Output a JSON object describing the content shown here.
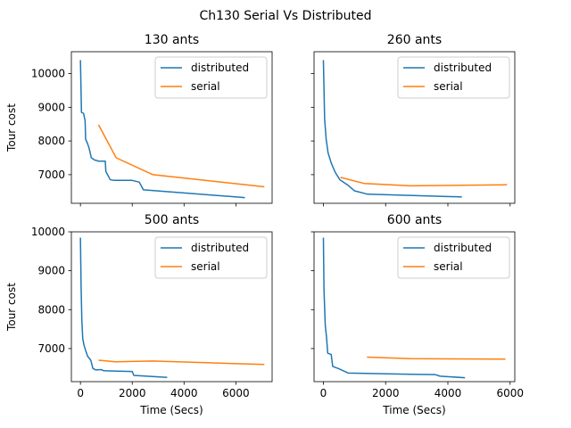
{
  "figure": {
    "title": "Ch130 Serial Vs Distributed"
  },
  "colors": {
    "distributed": "#1f77b4",
    "serial": "#ff7f0e"
  },
  "chart_data": [
    {
      "type": "line",
      "title": "130 ants",
      "xlabel": "",
      "ylabel": "Tour cost",
      "xlim": [
        -350,
        7400
      ],
      "ylim": [
        6150,
        10650
      ],
      "xticks": [
        0,
        2000,
        4000,
        6000
      ],
      "yticks": [
        7000,
        8000,
        9000,
        10000
      ],
      "show_xticklabels": false,
      "show_yticklabels": true,
      "legend": "top-right",
      "series": [
        {
          "name": "distributed",
          "points": [
            [
              0,
              10400
            ],
            [
              40,
              8850
            ],
            [
              120,
              8820
            ],
            [
              180,
              8600
            ],
            [
              200,
              8050
            ],
            [
              260,
              7950
            ],
            [
              330,
              7800
            ],
            [
              420,
              7500
            ],
            [
              560,
              7430
            ],
            [
              640,
              7420
            ],
            [
              700,
              7400
            ],
            [
              960,
              7400
            ],
            [
              980,
              7100
            ],
            [
              1150,
              6850
            ],
            [
              1300,
              6830
            ],
            [
              2000,
              6830
            ],
            [
              2150,
              6800
            ],
            [
              2270,
              6780
            ],
            [
              2430,
              6550
            ],
            [
              6350,
              6320
            ]
          ]
        },
        {
          "name": "serial",
          "points": [
            [
              700,
              8480
            ],
            [
              1380,
              7500
            ],
            [
              2800,
              7000
            ],
            [
              7100,
              6640
            ]
          ]
        }
      ]
    },
    {
      "type": "line",
      "title": "260 ants",
      "xlabel": "",
      "ylabel": "",
      "xlim": [
        -300,
        6150
      ],
      "ylim": [
        6150,
        10650
      ],
      "xticks": [
        0,
        2000,
        4000,
        6000
      ],
      "yticks": [
        7000,
        8000,
        9000,
        10000
      ],
      "show_xticklabels": false,
      "show_yticklabels": false,
      "legend": "top-right",
      "series": [
        {
          "name": "distributed",
          "points": [
            [
              0,
              10400
            ],
            [
              40,
              8650
            ],
            [
              90,
              8050
            ],
            [
              150,
              7650
            ],
            [
              250,
              7350
            ],
            [
              380,
              7070
            ],
            [
              530,
              6850
            ],
            [
              800,
              6680
            ],
            [
              1000,
              6520
            ],
            [
              1420,
              6420
            ],
            [
              4450,
              6340
            ]
          ]
        },
        {
          "name": "serial",
          "points": [
            [
              550,
              6920
            ],
            [
              1300,
              6740
            ],
            [
              2800,
              6670
            ],
            [
              5900,
              6700
            ]
          ]
        }
      ]
    },
    {
      "type": "line",
      "title": "500 ants",
      "xlabel": "Time (Secs)",
      "ylabel": "Tour cost",
      "xlim": [
        -350,
        7400
      ],
      "ylim": [
        6150,
        10000
      ],
      "xticks": [
        0,
        2000,
        4000,
        6000
      ],
      "yticks": [
        7000,
        8000,
        9000,
        10000
      ],
      "show_xticklabels": true,
      "show_yticklabels": true,
      "legend": "top-right",
      "series": [
        {
          "name": "distributed",
          "points": [
            [
              0,
              9850
            ],
            [
              25,
              8600
            ],
            [
              55,
              7700
            ],
            [
              90,
              7250
            ],
            [
              140,
              7080
            ],
            [
              200,
              6950
            ],
            [
              280,
              6800
            ],
            [
              400,
              6700
            ],
            [
              480,
              6490
            ],
            [
              600,
              6450
            ],
            [
              800,
              6460
            ],
            [
              900,
              6430
            ],
            [
              2000,
              6410
            ],
            [
              2060,
              6310
            ],
            [
              3350,
              6260
            ]
          ]
        },
        {
          "name": "serial",
          "points": [
            [
              700,
              6700
            ],
            [
              1350,
              6660
            ],
            [
              2800,
              6680
            ],
            [
              7100,
              6590
            ]
          ]
        }
      ]
    },
    {
      "type": "line",
      "title": "600 ants",
      "xlabel": "Time (Secs)",
      "ylabel": "",
      "xlim": [
        -300,
        6150
      ],
      "ylim": [
        6150,
        10000
      ],
      "xticks": [
        0,
        2000,
        4000,
        6000
      ],
      "yticks": [
        7000,
        8000,
        9000,
        10000
      ],
      "show_xticklabels": true,
      "show_yticklabels": false,
      "legend": "top-right",
      "series": [
        {
          "name": "distributed",
          "points": [
            [
              0,
              9850
            ],
            [
              20,
              8500
            ],
            [
              60,
              7600
            ],
            [
              100,
              7300
            ],
            [
              140,
              6880
            ],
            [
              250,
              6850
            ],
            [
              300,
              6540
            ],
            [
              500,
              6480
            ],
            [
              800,
              6370
            ],
            [
              2800,
              6340
            ],
            [
              3600,
              6330
            ],
            [
              3750,
              6290
            ],
            [
              4550,
              6250
            ]
          ]
        },
        {
          "name": "serial",
          "points": [
            [
              1400,
              6780
            ],
            [
              2800,
              6740
            ],
            [
              5850,
              6730
            ]
          ]
        }
      ]
    }
  ]
}
